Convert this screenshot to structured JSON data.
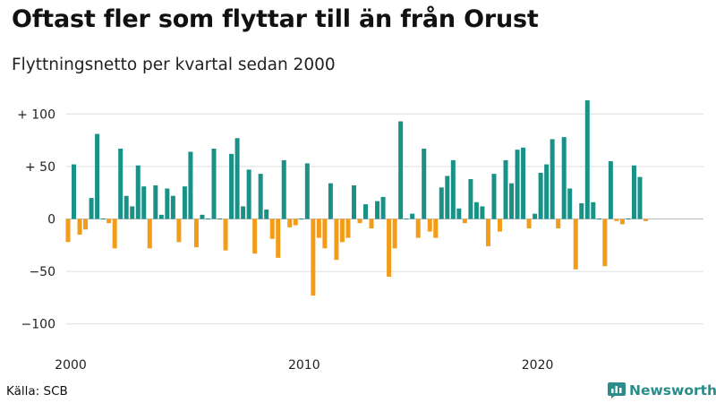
{
  "title": "Oftast fler som flyttar till än från Orust",
  "subtitle": "Flyttningsnetto per kvartal sedan 2000",
  "source": "Källa: SCB",
  "brand": {
    "name": "Newsworthy",
    "icon": "bar-chart-logo-icon"
  },
  "colors": {
    "positive": "#1a9187",
    "negative": "#f39c1a",
    "grid": "#dddddd",
    "brand": "#2a8d8a"
  },
  "chart_data": {
    "type": "bar",
    "title": "Oftast fler som flyttar till än från Orust",
    "subtitle": "Flyttningsnetto per kvartal sedan 2000",
    "xlabel": "",
    "ylabel": "",
    "ylim": [
      -110,
      115
    ],
    "yticks": [
      {
        "value": 100,
        "label": "+ 100"
      },
      {
        "value": 50,
        "label": "+  50"
      },
      {
        "value": 0,
        "label": "0"
      },
      {
        "value": -50,
        "label": "−50"
      },
      {
        "value": -100,
        "label": "−100"
      }
    ],
    "xticks": [
      {
        "year": 2000,
        "label": "2000"
      },
      {
        "year": 2010,
        "label": "2010"
      },
      {
        "year": 2020,
        "label": "2020"
      }
    ],
    "grid": true,
    "start_year": 2000,
    "start_quarter": 1,
    "values": [
      -22,
      52,
      -15,
      -10,
      20,
      81,
      0,
      -4,
      -28,
      67,
      22,
      12,
      51,
      31,
      -28,
      32,
      4,
      29,
      22,
      -22,
      31,
      64,
      -27,
      4,
      0,
      67,
      0,
      -30,
      62,
      77,
      12,
      47,
      -33,
      43,
      9,
      -19,
      -37,
      56,
      -8,
      -6,
      0,
      53,
      -73,
      -18,
      -28,
      34,
      -39,
      -22,
      -18,
      32,
      -4,
      14,
      -9,
      17,
      21,
      -55,
      -28,
      93,
      0,
      5,
      -18,
      67,
      -12,
      -18,
      30,
      41,
      56,
      10,
      -4,
      38,
      16,
      12,
      -26,
      43,
      -12,
      56,
      34,
      66,
      68,
      -9,
      5,
      44,
      52,
      76,
      -9,
      78,
      29,
      -48,
      15,
      113,
      16,
      0,
      -45,
      55,
      -2,
      -5,
      0,
      51,
      40,
      -2
    ]
  }
}
